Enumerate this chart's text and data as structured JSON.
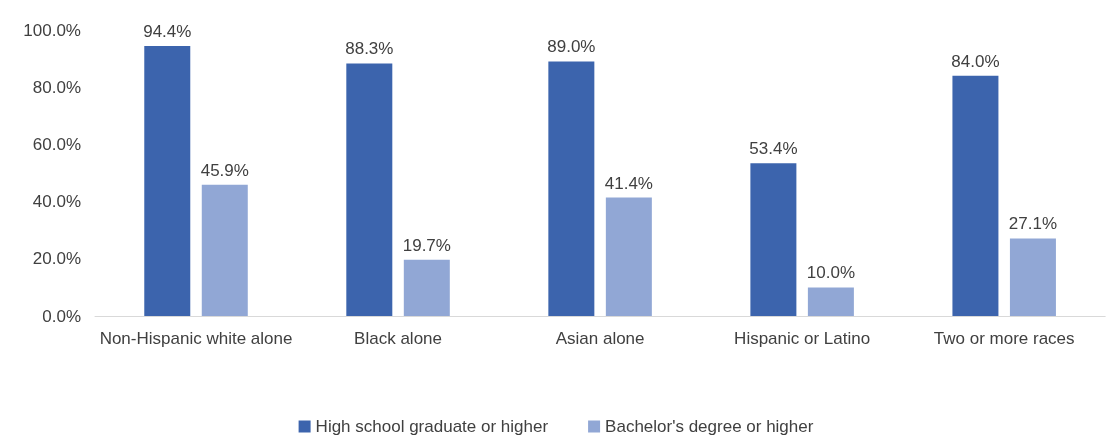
{
  "chart_data": {
    "type": "bar",
    "categories": [
      "Non-Hispanic white alone",
      "Black alone",
      "Asian alone",
      "Hispanic or Latino",
      "Two or more races"
    ],
    "series": [
      {
        "name": "High school graduate or higher",
        "color": "#3c64ad",
        "values": [
          94.4,
          88.3,
          89.0,
          53.4,
          84.0
        ],
        "value_labels": [
          "94.4%",
          "88.3%",
          "89.0%",
          "53.4%",
          "84.0%"
        ]
      },
      {
        "name": "Bachelor's degree or higher",
        "color": "#91a7d5",
        "values": [
          45.9,
          19.7,
          41.4,
          10.0,
          27.1
        ],
        "value_labels": [
          "45.9%",
          "19.7%",
          "41.4%",
          "10.0%",
          "27.1%"
        ]
      }
    ],
    "ylim": [
      0,
      100
    ],
    "yticks": [
      {
        "value": 0,
        "label": "0.0%"
      },
      {
        "value": 20,
        "label": "20.0%"
      },
      {
        "value": 40,
        "label": "40.0%"
      },
      {
        "value": 60,
        "label": "60.0%"
      },
      {
        "value": 80,
        "label": "80.0%"
      },
      {
        "value": 100,
        "label": "100.0%"
      }
    ],
    "grid": false,
    "legend": "bottom"
  }
}
